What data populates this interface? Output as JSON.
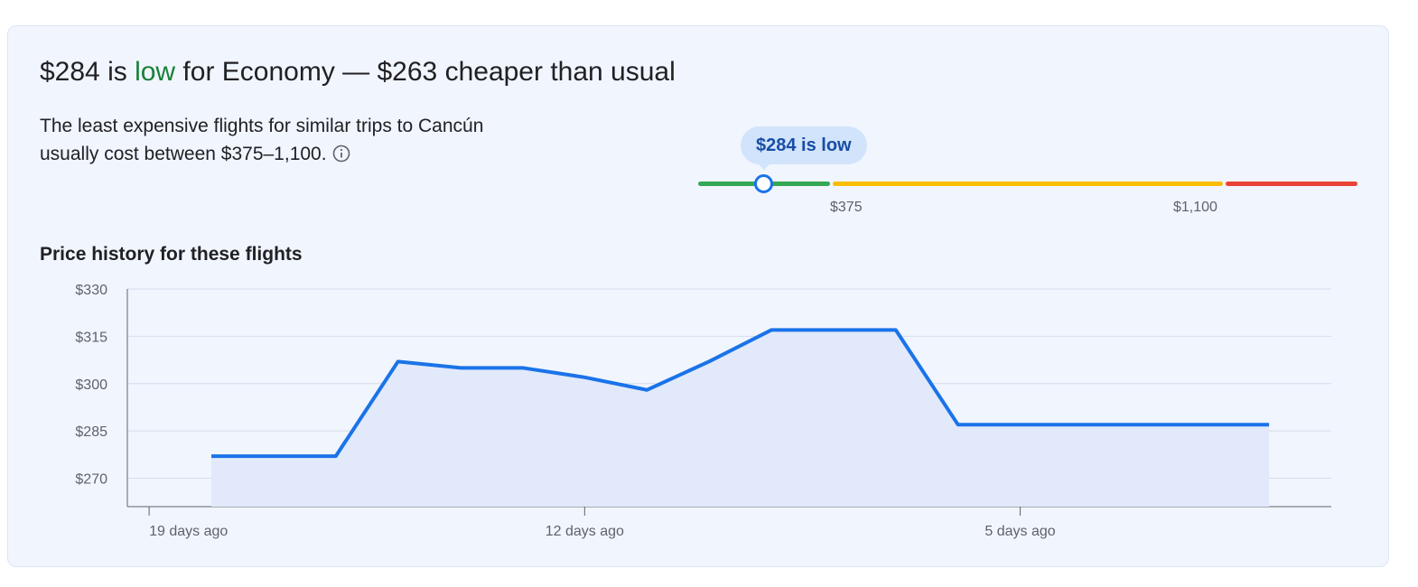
{
  "headline": {
    "prefix": "$284 is ",
    "level": "low",
    "suffix": " for Economy — $263 cheaper than usual"
  },
  "description": "The least expensive flights for similar trips to Cancún usually cost between $375–1,100.",
  "info_icon": "info-icon",
  "price_range": {
    "bubble_label": "$284 is low",
    "low_label": "$375",
    "high_label": "$1,100",
    "current_price": 284,
    "typical_low": 375,
    "typical_high": 1100,
    "colors": {
      "low": "#34a853",
      "typical": "#fbbc04",
      "high": "#ea4335",
      "marker": "#1a73e8"
    }
  },
  "section_title": "Price history for these flights",
  "chart_data": {
    "type": "line",
    "x_unit": "days ago",
    "x": [
      18,
      16,
      15,
      14,
      13,
      12,
      11,
      10,
      9,
      8,
      7,
      6,
      5,
      4,
      3,
      2,
      1
    ],
    "y": [
      277,
      277,
      307,
      305,
      305,
      302,
      298,
      307,
      317,
      317,
      317,
      287,
      287,
      287,
      287,
      287,
      287
    ],
    "ylim": [
      261,
      330
    ],
    "yticks": [
      270,
      285,
      300,
      315,
      330
    ],
    "ytick_labels": [
      "$270",
      "$285",
      "$300",
      "$315",
      "$330"
    ],
    "xticks": [
      19,
      12,
      5
    ],
    "xtick_labels": [
      "19 days ago",
      "12 days ago",
      "5 days ago"
    ],
    "xlim": [
      19.35,
      0
    ],
    "grid": true,
    "line_color": "#1a73e8",
    "fill_color": "#e1e9fb"
  }
}
